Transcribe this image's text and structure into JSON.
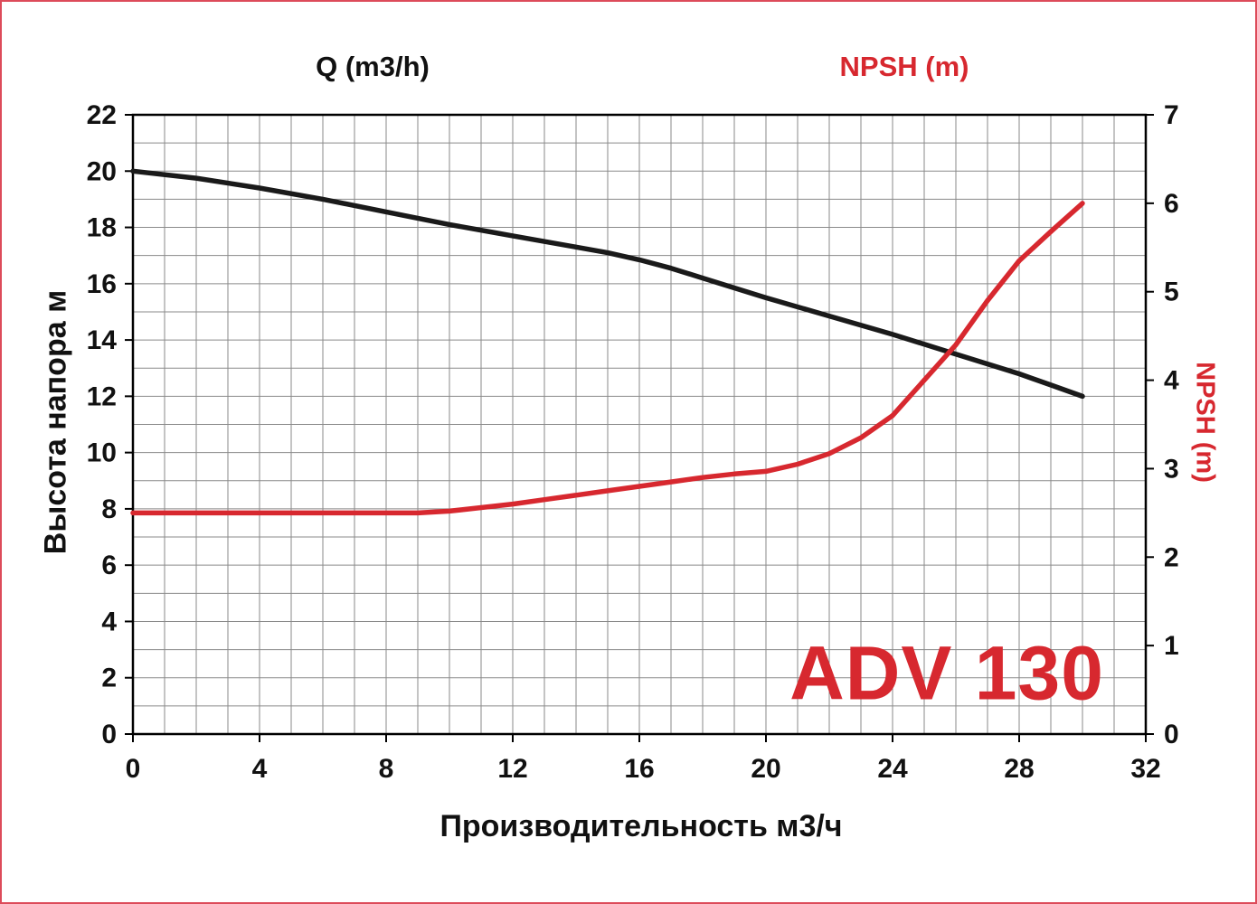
{
  "frame": {
    "border_color": "#dd4b5a",
    "background": "#ffffff"
  },
  "chart_data": {
    "type": "line",
    "top_left_label": "Q (m3/h)",
    "top_right_label": "NPSH (m)",
    "annotation": {
      "text": "ADV 130",
      "color": "#d7282f"
    },
    "x_axis": {
      "label": "Производительность м3/ч",
      "min": 0,
      "max": 32,
      "tick_step": 4,
      "ticks": [
        0,
        4,
        8,
        12,
        16,
        20,
        24,
        28,
        32
      ]
    },
    "left_axis": {
      "label": "Высота напора м",
      "min": 0,
      "max": 22,
      "tick_step": 2,
      "ticks": [
        0,
        2,
        4,
        6,
        8,
        10,
        12,
        14,
        16,
        18,
        20,
        22
      ]
    },
    "right_axis": {
      "label": "NPSH (m)",
      "min": 0,
      "max": 7,
      "tick_step": 1,
      "ticks": [
        0,
        1,
        2,
        3,
        4,
        5,
        6,
        7
      ],
      "label_color": "#d7282f"
    },
    "grid": {
      "on": true,
      "minor_step_x": 1,
      "minor_step_y": 1,
      "color": "#8a8a8a"
    },
    "series": [
      {
        "name": "head-curve",
        "axis": "left",
        "color": "#1a1a1a",
        "points": [
          [
            0,
            20.0
          ],
          [
            2,
            19.75
          ],
          [
            4,
            19.4
          ],
          [
            6,
            19.0
          ],
          [
            8,
            18.55
          ],
          [
            10,
            18.1
          ],
          [
            12,
            17.7
          ],
          [
            14,
            17.3
          ],
          [
            15,
            17.1
          ],
          [
            16,
            16.85
          ],
          [
            17,
            16.55
          ],
          [
            18,
            16.2
          ],
          [
            20,
            15.5
          ],
          [
            22,
            14.85
          ],
          [
            24,
            14.2
          ],
          [
            25,
            13.85
          ],
          [
            26,
            13.5
          ],
          [
            27,
            13.15
          ],
          [
            28,
            12.8
          ],
          [
            29,
            12.4
          ],
          [
            30,
            12.0
          ]
        ]
      },
      {
        "name": "npsh-curve",
        "axis": "right",
        "color": "#d7282f",
        "points": [
          [
            0,
            2.5
          ],
          [
            2,
            2.5
          ],
          [
            4,
            2.5
          ],
          [
            6,
            2.5
          ],
          [
            8,
            2.5
          ],
          [
            9,
            2.5
          ],
          [
            10,
            2.52
          ],
          [
            11,
            2.56
          ],
          [
            12,
            2.6
          ],
          [
            13,
            2.65
          ],
          [
            14,
            2.7
          ],
          [
            15,
            2.75
          ],
          [
            16,
            2.8
          ],
          [
            17,
            2.85
          ],
          [
            18,
            2.9
          ],
          [
            19,
            2.94
          ],
          [
            20,
            2.97
          ],
          [
            21,
            3.05
          ],
          [
            22,
            3.17
          ],
          [
            23,
            3.35
          ],
          [
            24,
            3.6
          ],
          [
            25,
            4.0
          ],
          [
            26,
            4.4
          ],
          [
            27,
            4.9
          ],
          [
            28,
            5.35
          ],
          [
            29,
            5.68
          ],
          [
            30,
            6.0
          ]
        ]
      }
    ]
  }
}
